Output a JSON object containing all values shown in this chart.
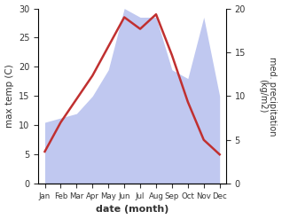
{
  "months": [
    "Jan",
    "Feb",
    "Mar",
    "Apr",
    "May",
    "Jun",
    "Jul",
    "Aug",
    "Sep",
    "Oct",
    "Nov",
    "Dec"
  ],
  "month_positions": [
    0,
    1,
    2,
    3,
    4,
    5,
    6,
    7,
    8,
    9,
    10,
    11
  ],
  "max_temp": [
    5.5,
    10.5,
    14.5,
    18.5,
    23.5,
    28.5,
    26.5,
    29.0,
    22.0,
    14.0,
    7.5,
    5.0
  ],
  "precipitation": [
    7.0,
    7.5,
    8.0,
    10.0,
    13.0,
    20.0,
    19.0,
    19.0,
    13.0,
    12.0,
    19.0,
    10.0
  ],
  "temp_ylim": [
    0,
    30
  ],
  "precip_ylim": [
    0,
    20
  ],
  "temp_color": "#c03030",
  "precip_fill_color": "#c0c8f0",
  "ylabel_left": "max temp (C)",
  "ylabel_right": "med. precipitation\n(kg/m2)",
  "xlabel": "date (month)",
  "yticks_left": [
    0,
    5,
    10,
    15,
    20,
    25,
    30
  ],
  "yticks_right": [
    0,
    5,
    10,
    15,
    20
  ],
  "bg_color": "#ffffff",
  "font_color": "#333333"
}
